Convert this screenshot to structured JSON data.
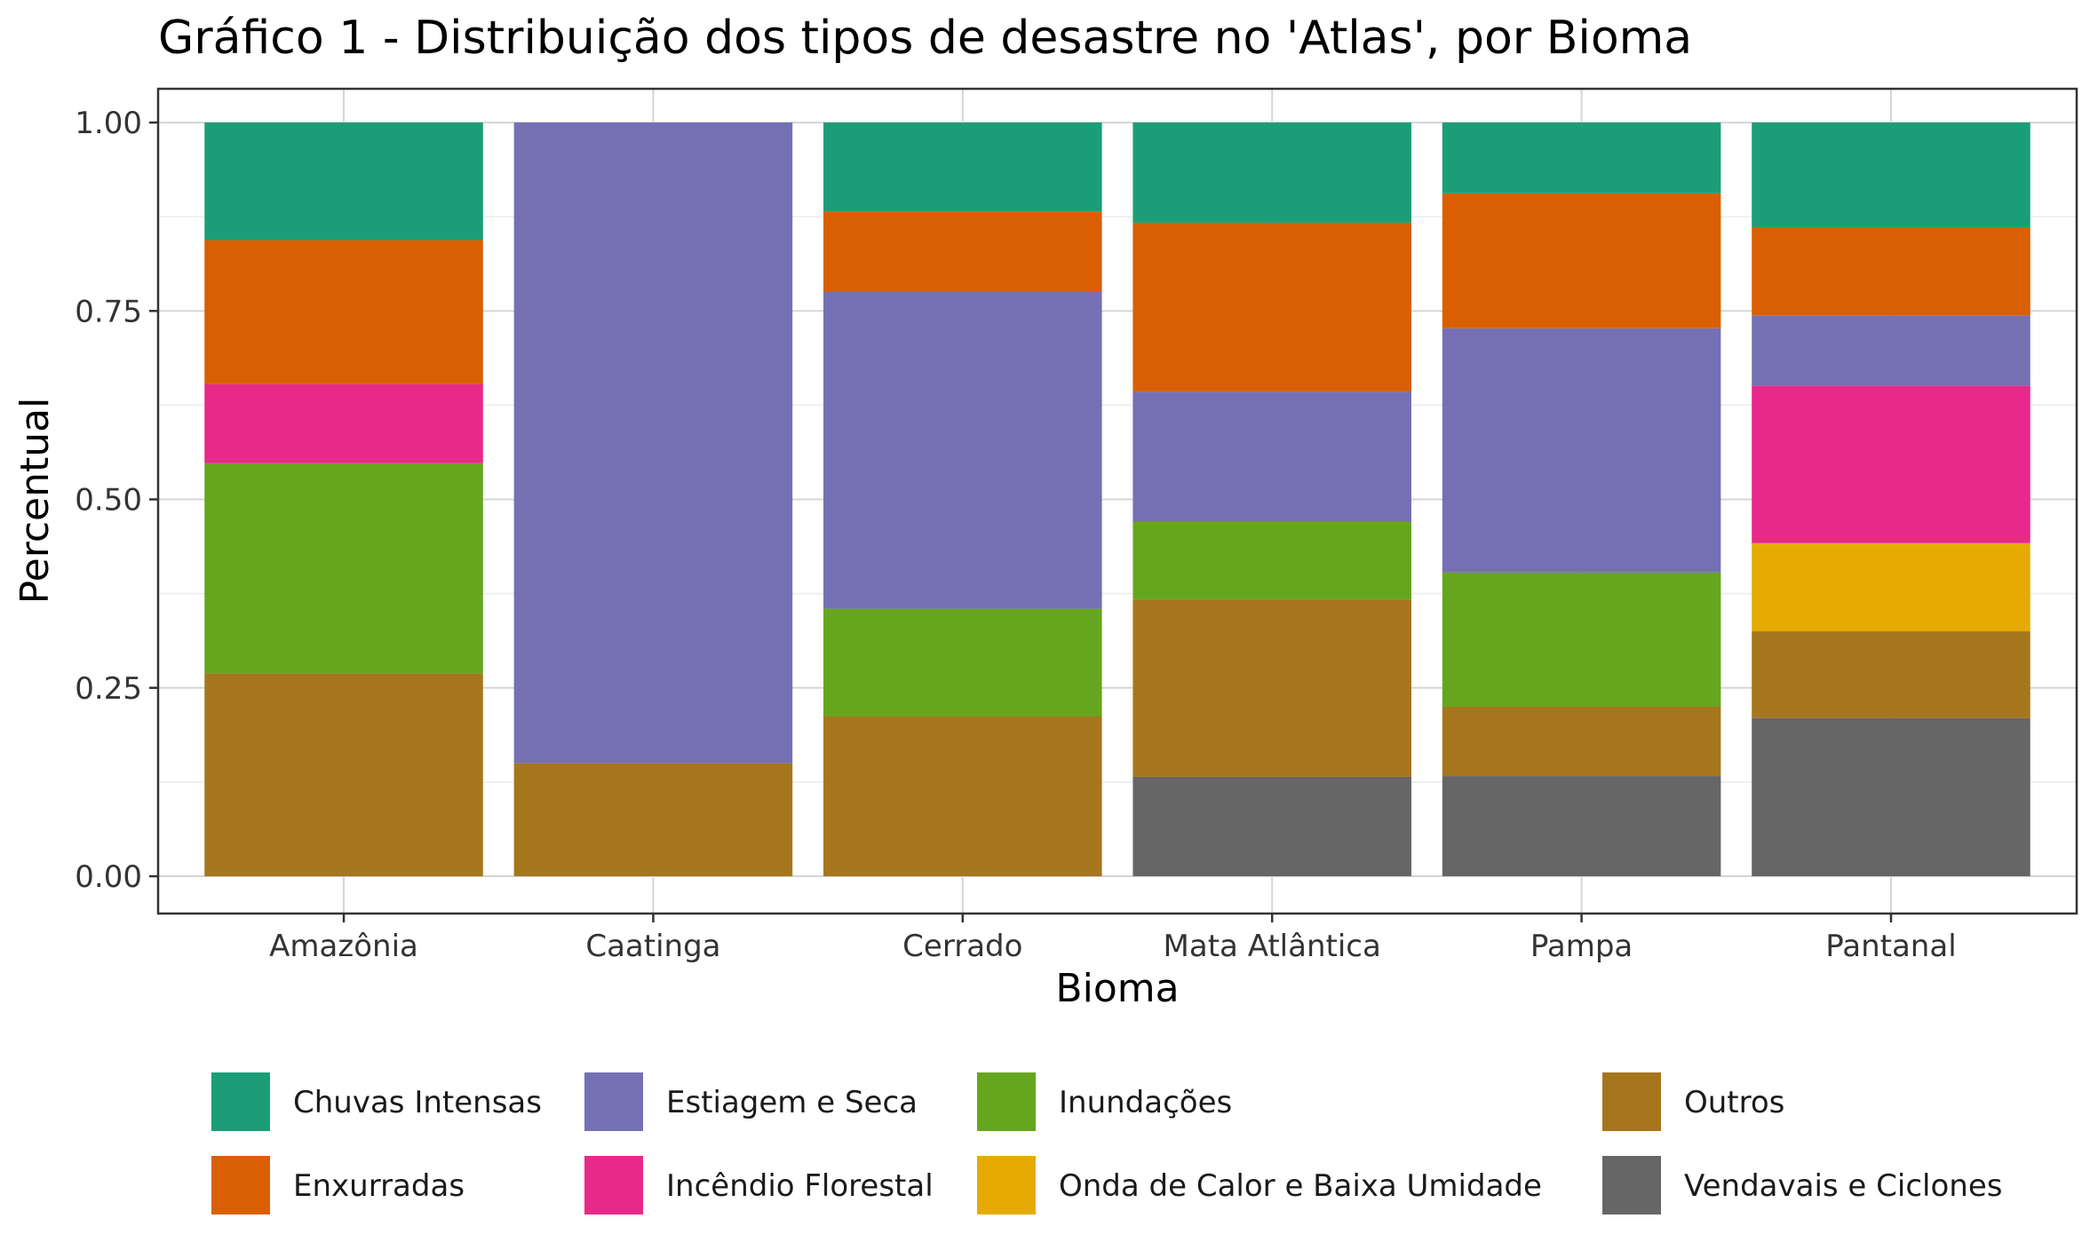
{
  "chart_data": {
    "type": "bar",
    "stacked": true,
    "title": "Gráfico 1 - Distribuição dos tipos de desastre no 'Atlas', por Bioma",
    "xlabel": "Bioma",
    "ylabel": "Percentual",
    "ylim": [
      0,
      1
    ],
    "yticks": [
      "0.00",
      "0.25",
      "0.50",
      "0.75",
      "1.00"
    ],
    "ytick_values": [
      0,
      0.25,
      0.5,
      0.75,
      1.0
    ],
    "grid": true,
    "legend_position": "bottom",
    "categories": [
      "Amazônia",
      "Caatinga",
      "Cerrado",
      "Mata Atlântica",
      "Pampa",
      "Pantanal"
    ],
    "series": [
      {
        "name": "Vendavais e Ciclones",
        "color": "#666666",
        "values": [
          0,
          0,
          0,
          0.132,
          0.133,
          0.21
        ]
      },
      {
        "name": "Outros",
        "color": "#A6761D",
        "values": [
          0.269,
          0.15,
          0.212,
          0.235,
          0.092,
          0.115
        ]
      },
      {
        "name": "Onda de Calor e Baixa Umidade",
        "color": "#E6AB02",
        "values": [
          0,
          0,
          0,
          0,
          0,
          0.117
        ]
      },
      {
        "name": "Inundações",
        "color": "#66A61E",
        "values": [
          0.279,
          0,
          0.143,
          0.103,
          0.178,
          0
        ]
      },
      {
        "name": "Incêndio Florestal",
        "color": "#E7298A",
        "values": [
          0.105,
          0,
          0,
          0,
          0,
          0.209
        ]
      },
      {
        "name": "Estiagem e Seca",
        "color": "#7570B3",
        "values": [
          0,
          0.85,
          0.42,
          0.173,
          0.324,
          0.093
        ]
      },
      {
        "name": "Enxurradas",
        "color": "#D95F02",
        "values": [
          0.191,
          0,
          0.107,
          0.224,
          0.179,
          0.117
        ]
      },
      {
        "name": "Chuvas Intensas",
        "color": "#1B9E77",
        "values": [
          0.156,
          0,
          0.118,
          0.133,
          0.094,
          0.139
        ]
      }
    ],
    "legend": [
      [
        "Chuvas Intensas",
        "Enxurradas"
      ],
      [
        "Estiagem e Seca",
        "Incêndio Florestal"
      ],
      [
        "Inundações",
        "Onda de Calor e Baixa Umidade"
      ],
      [
        "Outros",
        "Vendavais e Ciclones"
      ]
    ]
  }
}
